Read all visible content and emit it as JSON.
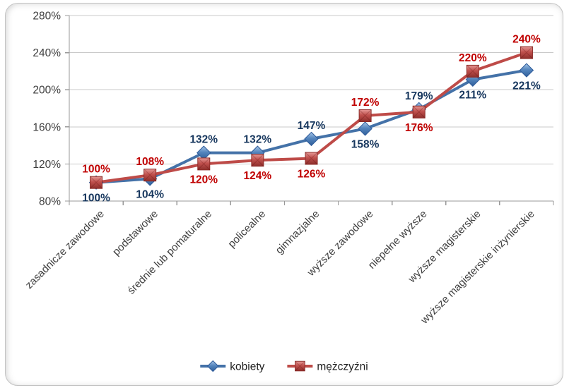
{
  "chart_data": {
    "type": "line",
    "title": "",
    "categories": [
      "zasadnicze zawodowe",
      "podstawowe",
      "średnie lub pomaturalne",
      "policealne",
      "gimnazjalne",
      "wyższe zawodowe",
      "niepełne wyższe",
      "wyższe magisterskie",
      "wyższe magisterskie inżynierskie"
    ],
    "series": [
      {
        "name": "kobiety",
        "marker": "diamond",
        "line_color": "#4472A8",
        "label_color": "#17375E",
        "values": [
          100,
          104,
          132,
          132,
          147,
          158,
          179,
          211,
          221
        ],
        "label_positions": [
          "below",
          "below",
          "above",
          "above",
          "above",
          "below",
          "above",
          "below",
          "below"
        ]
      },
      {
        "name": "mężczyźni",
        "marker": "square",
        "line_color": "#BE4B48",
        "label_color": "#C00000",
        "values": [
          100,
          108,
          120,
          124,
          126,
          172,
          176,
          220,
          240
        ],
        "label_positions": [
          "above",
          "above",
          "below",
          "below",
          "below",
          "above",
          "below",
          "above",
          "above"
        ]
      }
    ],
    "value_suffix": "%",
    "ylim": [
      80,
      280
    ],
    "ytick_step": 40,
    "yticks": [
      {
        "label": "80%",
        "value": 80
      },
      {
        "label": "120%",
        "value": 120
      },
      {
        "label": "160%",
        "value": 160
      },
      {
        "label": "200%",
        "value": 200
      },
      {
        "label": "240%",
        "value": 240
      },
      {
        "label": "280%",
        "value": 280
      }
    ],
    "grid": true,
    "legend_position": "bottom",
    "colors": {
      "gridline": "#C9C9C9",
      "axis": "#999999",
      "axis_text": "#3F3F3F",
      "legend_text": "#1F1F1F"
    }
  }
}
